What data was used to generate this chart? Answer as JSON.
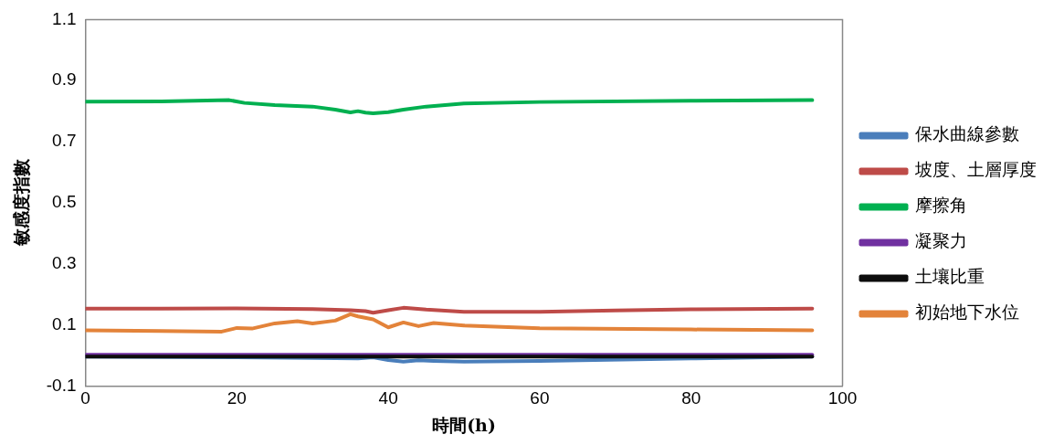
{
  "chart_data": {
    "type": "line",
    "xlabel": "時間(h)",
    "ylabel": "敏感度指數",
    "xlim": [
      0,
      100
    ],
    "xticks": [
      0,
      20,
      40,
      60,
      80,
      100
    ],
    "ylim": [
      -0.1,
      1.1
    ],
    "yticks": [
      -0.1,
      0.1,
      0.3,
      0.5,
      0.7,
      0.9,
      1.1
    ],
    "grid": false,
    "legend": "right",
    "marker": "none",
    "line_style": "solid",
    "series": [
      {
        "name": "保水曲線參數",
        "color": "#4a7ebb",
        "x": [
          0,
          20,
          30,
          36,
          38,
          40,
          42,
          44,
          46,
          50,
          60,
          80,
          96
        ],
        "values": [
          -0.004,
          -0.006,
          -0.008,
          -0.01,
          -0.006,
          -0.015,
          -0.02,
          -0.016,
          -0.018,
          -0.02,
          -0.018,
          -0.01,
          -0.004
        ]
      },
      {
        "name": "坡度、土層厚度",
        "color": "#be4b48",
        "x": [
          0,
          10,
          20,
          30,
          35,
          37,
          38,
          40,
          42,
          45,
          50,
          60,
          70,
          80,
          96
        ],
        "values": [
          0.153,
          0.153,
          0.154,
          0.152,
          0.148,
          0.145,
          0.14,
          0.148,
          0.156,
          0.15,
          0.143,
          0.143,
          0.147,
          0.151,
          0.153
        ]
      },
      {
        "name": "摩擦角",
        "color": "#00b050",
        "x": [
          0,
          10,
          19,
          21,
          25,
          30,
          33,
          35,
          36,
          37,
          38,
          40,
          42,
          45,
          50,
          60,
          80,
          96
        ],
        "values": [
          0.831,
          0.832,
          0.836,
          0.827,
          0.82,
          0.815,
          0.805,
          0.796,
          0.8,
          0.795,
          0.793,
          0.797,
          0.805,
          0.815,
          0.825,
          0.83,
          0.834,
          0.836
        ]
      },
      {
        "name": "凝聚力",
        "color": "#7030a0",
        "x": [
          0,
          40,
          96
        ],
        "values": [
          0.002,
          0.002,
          0.002
        ]
      },
      {
        "name": "土壤比重",
        "color": "#0d0d0d",
        "x": [
          0,
          40,
          96
        ],
        "values": [
          -0.004,
          -0.004,
          -0.004
        ]
      },
      {
        "name": "初始地下水位",
        "color": "#e3833a",
        "x": [
          0,
          10,
          18,
          20,
          22,
          25,
          28,
          30,
          33,
          35,
          36,
          38,
          40,
          42,
          44,
          46,
          50,
          60,
          80,
          96
        ],
        "values": [
          0.082,
          0.08,
          0.078,
          0.09,
          0.088,
          0.105,
          0.112,
          0.105,
          0.114,
          0.135,
          0.128,
          0.118,
          0.092,
          0.108,
          0.096,
          0.106,
          0.098,
          0.089,
          0.085,
          0.082
        ]
      }
    ]
  }
}
